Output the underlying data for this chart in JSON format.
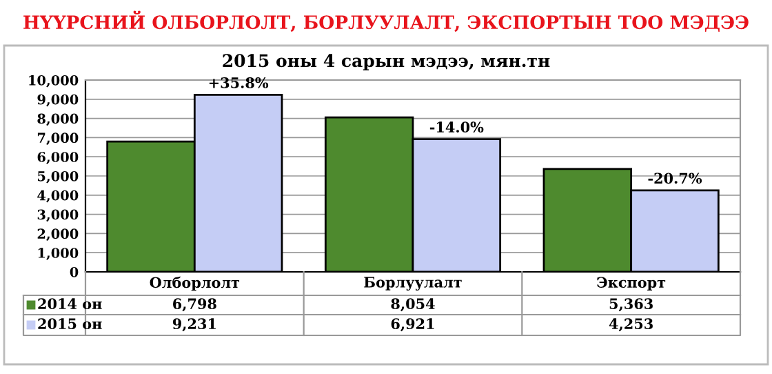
{
  "chart_data": {
    "type": "bar",
    "title": "НҮҮРСНИЙ ОЛБОРЛОЛТ, БОРЛУУЛАЛТ, ЭКСПОРТЫН ТОО МЭДЭЭ",
    "subtitle": "2015 оны 4 сарын мэдээ, мян.тн",
    "categories": [
      "Олборлолт",
      "Борлуулалт",
      "Экспорт"
    ],
    "series": [
      {
        "name": "2014 он",
        "color": "#4e8a2e",
        "values": [
          6798,
          8054,
          5363
        ],
        "value_labels": [
          "6,798",
          "8,054",
          "5,363"
        ]
      },
      {
        "name": "2015 он",
        "color": "#c5cdf5",
        "values": [
          9231,
          6921,
          4253
        ],
        "value_labels": [
          "9,231",
          "6,921",
          "4,253"
        ]
      }
    ],
    "ylim": [
      0,
      10000
    ],
    "yticks": [
      0,
      {
        "value": 1000,
        "label": "1,000"
      },
      {
        "value": 2000,
        "label": "2,000"
      },
      {
        "value": 3000,
        "label": "3,000"
      },
      {
        "value": 4000,
        "label": "4,000"
      },
      {
        "value": 5000,
        "label": "5,000"
      },
      {
        "value": 6000,
        "label": "6,000"
      },
      {
        "value": 7000,
        "label": "7,000"
      },
      {
        "value": 8000,
        "label": "8,000"
      },
      {
        "value": 9000,
        "label": "9,000"
      },
      {
        "value": 10000,
        "label": "10,000"
      }
    ],
    "annotations": [
      {
        "text": "+35.8%",
        "x": "Олборлолт",
        "y": 9231
      },
      {
        "text": "-14.0%",
        "x": "Борлуулалт",
        "y": 6921
      },
      {
        "text": "-20.7%",
        "x": "Экспорт",
        "y": 4253
      }
    ],
    "grid": "y",
    "legend": "bottom"
  }
}
